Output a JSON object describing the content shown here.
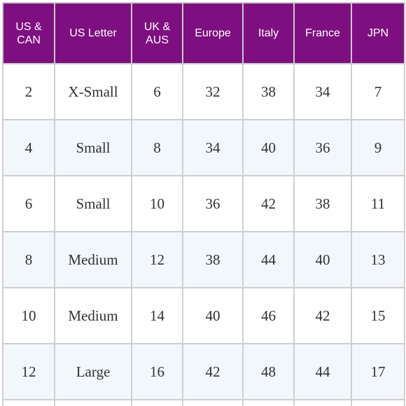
{
  "table": {
    "headers": [
      "US & CAN",
      "US Letter",
      "UK & AUS",
      "Europe",
      "Italy",
      "France",
      "JPN"
    ],
    "rows": [
      [
        "2",
        "X-Small",
        "6",
        "32",
        "38",
        "34",
        "7"
      ],
      [
        "4",
        "Small",
        "8",
        "34",
        "40",
        "36",
        "9"
      ],
      [
        "6",
        "Small",
        "10",
        "36",
        "42",
        "38",
        "11"
      ],
      [
        "8",
        "Medium",
        "12",
        "38",
        "44",
        "40",
        "13"
      ],
      [
        "10",
        "Medium",
        "14",
        "40",
        "46",
        "42",
        "15"
      ],
      [
        "12",
        "Large",
        "16",
        "42",
        "48",
        "44",
        "17"
      ]
    ]
  },
  "colors": {
    "header_bg": "#7e0f80",
    "header_text": "#ffffff",
    "alt_row_bg": "#f2f7fc",
    "border": "#cfcfcf"
  }
}
